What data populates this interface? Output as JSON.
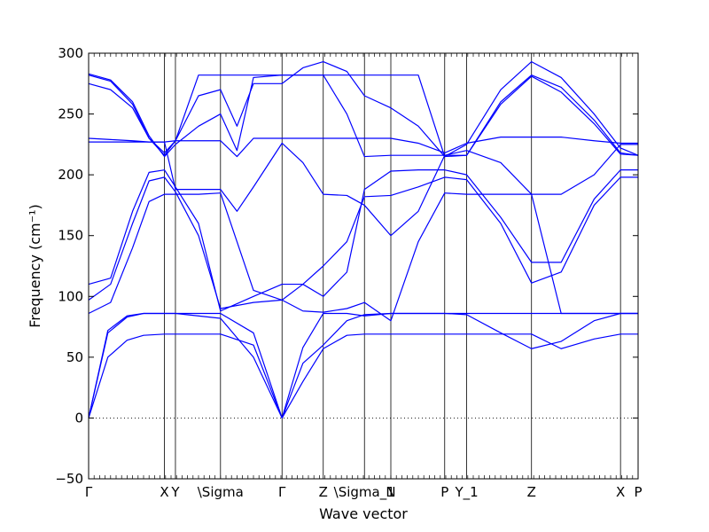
{
  "chart_data": {
    "type": "line",
    "xlabel": "Wave vector",
    "ylabel": "Frequency (cm⁻¹)",
    "ylim": [
      -50,
      300
    ],
    "y_ticks": [
      -50,
      0,
      50,
      100,
      150,
      200,
      250,
      300
    ],
    "x_ticks": [
      {
        "label": "Γ",
        "x": 0.0
      },
      {
        "label": "X",
        "x": 0.138
      },
      {
        "label": "Y",
        "x": 0.158
      },
      {
        "label": "\\Sigma",
        "x": 0.24
      },
      {
        "label": "Γ",
        "x": 0.352
      },
      {
        "label": "Z",
        "x": 0.427
      },
      {
        "label": "\\Sigma_1",
        "x": 0.502
      },
      {
        "label": "N",
        "x": 0.55
      },
      {
        "label": "P",
        "x": 0.648
      },
      {
        "label": "Y_1",
        "x": 0.688
      },
      {
        "label": "Z",
        "x": 0.806
      },
      {
        "label": "X",
        "x": 0.968
      },
      {
        "label": "P",
        "x": 1.0
      }
    ],
    "zero_line": true,
    "line_color": "#0000ff",
    "series": [
      {
        "x": [
          0,
          0.035,
          0.07,
          0.1,
          0.138,
          0.158,
          0.24,
          0.3,
          0.352,
          0.39,
          0.427,
          0.47,
          0.502,
          0.55,
          0.6,
          0.648,
          0.688,
          0.75,
          0.806,
          0.86,
          0.92,
          0.968,
          1.0
        ],
        "y": [
          0,
          50,
          64,
          68,
          69,
          69,
          69,
          60,
          0,
          30,
          57,
          68,
          69,
          69,
          69,
          69,
          69,
          69,
          69,
          57,
          65,
          69,
          69
        ]
      },
      {
        "x": [
          0,
          0.035,
          0.07,
          0.1,
          0.138,
          0.158,
          0.24,
          0.3,
          0.352,
          0.39,
          0.427,
          0.47,
          0.502,
          0.55,
          0.6,
          0.648,
          0.688,
          0.75,
          0.806,
          0.86,
          0.92,
          0.968,
          1.0
        ],
        "y": [
          0,
          70,
          83,
          86,
          86,
          86,
          82,
          50,
          0,
          45,
          60,
          80,
          85,
          86,
          86,
          86,
          86,
          86,
          86,
          86,
          86,
          86,
          86
        ]
      },
      {
        "x": [
          0,
          0.035,
          0.07,
          0.1,
          0.138,
          0.158,
          0.24,
          0.3,
          0.352,
          0.39,
          0.427,
          0.47,
          0.502,
          0.55,
          0.6,
          0.648,
          0.688,
          0.75,
          0.806,
          0.86,
          0.92,
          0.968,
          1.0
        ],
        "y": [
          0,
          72,
          84,
          86,
          86,
          86,
          86,
          70,
          0,
          58,
          86,
          86,
          84,
          86,
          86,
          86,
          85,
          70,
          57,
          63,
          80,
          86,
          86
        ]
      },
      {
        "x": [
          0,
          0.04,
          0.08,
          0.11,
          0.138,
          0.158,
          0.2,
          0.24,
          0.3,
          0.352,
          0.39,
          0.427,
          0.47,
          0.502,
          0.55,
          0.6,
          0.648,
          0.688,
          0.75,
          0.806,
          0.86,
          0.92,
          0.968,
          1.0
        ],
        "y": [
          86,
          95,
          140,
          178,
          184,
          184,
          184,
          185,
          105,
          97,
          88,
          87,
          90,
          95,
          80,
          145,
          185,
          184,
          184,
          184,
          86,
          86,
          86,
          86
        ]
      },
      {
        "x": [
          0,
          0.04,
          0.08,
          0.11,
          0.138,
          0.158,
          0.2,
          0.24,
          0.3,
          0.352,
          0.39,
          0.427,
          0.47,
          0.502,
          0.55,
          0.6,
          0.648,
          0.688,
          0.75,
          0.806,
          0.86,
          0.92,
          0.968,
          1.0
        ],
        "y": [
          97,
          110,
          160,
          195,
          198,
          186,
          150,
          90,
          95,
          97,
          110,
          125,
          145,
          182,
          183,
          190,
          198,
          196,
          160,
          111,
          120,
          175,
          198,
          198
        ]
      },
      {
        "x": [
          0,
          0.04,
          0.08,
          0.11,
          0.138,
          0.158,
          0.2,
          0.24,
          0.3,
          0.352,
          0.39,
          0.427,
          0.47,
          0.502,
          0.55,
          0.6,
          0.648,
          0.688,
          0.75,
          0.806,
          0.86,
          0.92,
          0.968,
          1.0
        ],
        "y": [
          110,
          115,
          170,
          202,
          204,
          190,
          160,
          88,
          100,
          110,
          110,
          100,
          120,
          188,
          203,
          204,
          204,
          200,
          165,
          128,
          128,
          180,
          204,
          204
        ]
      },
      {
        "x": [
          0,
          0.04,
          0.08,
          0.11,
          0.138,
          0.158,
          0.2,
          0.24,
          0.27,
          0.3,
          0.352,
          0.39,
          0.427,
          0.47,
          0.502,
          0.55,
          0.6,
          0.648,
          0.688,
          0.75,
          0.806,
          0.86,
          0.92,
          0.968,
          1.0
        ],
        "y": [
          227,
          227,
          227,
          227,
          227,
          188,
          188,
          188,
          170,
          190,
          226,
          210,
          184,
          183,
          175,
          150,
          170,
          216,
          220,
          210,
          184,
          184,
          200,
          225,
          225
        ]
      },
      {
        "x": [
          0,
          0.04,
          0.08,
          0.11,
          0.138,
          0.158,
          0.2,
          0.24,
          0.27,
          0.3,
          0.352,
          0.39,
          0.427,
          0.47,
          0.502,
          0.55,
          0.6,
          0.648,
          0.688,
          0.75,
          0.806,
          0.86,
          0.92,
          0.968,
          1.0
        ],
        "y": [
          230,
          229,
          228,
          227,
          227,
          228,
          228,
          228,
          215,
          230,
          230,
          230,
          230,
          230,
          230,
          230,
          226,
          218,
          226,
          231,
          231,
          231,
          228,
          226,
          226
        ]
      },
      {
        "x": [
          0,
          0.04,
          0.08,
          0.11,
          0.138,
          0.158,
          0.2,
          0.24,
          0.27,
          0.3,
          0.352,
          0.39,
          0.427,
          0.47,
          0.502,
          0.55,
          0.6,
          0.648,
          0.688,
          0.75,
          0.806,
          0.86,
          0.92,
          0.968,
          1.0
        ],
        "y": [
          275,
          270,
          255,
          230,
          218,
          228,
          265,
          270,
          240,
          275,
          275,
          288,
          293,
          285,
          265,
          255,
          240,
          215,
          225,
          270,
          293,
          280,
          250,
          222,
          216
        ]
      },
      {
        "x": [
          0,
          0.04,
          0.08,
          0.11,
          0.138,
          0.158,
          0.2,
          0.24,
          0.27,
          0.3,
          0.352,
          0.39,
          0.427,
          0.47,
          0.502,
          0.55,
          0.6,
          0.648,
          0.688,
          0.75,
          0.806,
          0.86,
          0.92,
          0.968,
          1.0
        ],
        "y": [
          283,
          278,
          260,
          232,
          215,
          225,
          240,
          250,
          220,
          280,
          282,
          282,
          282,
          282,
          282,
          282,
          282,
          215,
          216,
          260,
          282,
          272,
          245,
          218,
          216
        ]
      },
      {
        "x": [
          0,
          0.04,
          0.08,
          0.11,
          0.138,
          0.158,
          0.2,
          0.24,
          0.27,
          0.3,
          0.352,
          0.39,
          0.427,
          0.47,
          0.502,
          0.55,
          0.6,
          0.648,
          0.688,
          0.75,
          0.806,
          0.86,
          0.92,
          0.968,
          1.0
        ],
        "y": [
          282,
          277,
          258,
          230,
          216,
          228,
          282,
          282,
          282,
          282,
          282,
          282,
          282,
          250,
          215,
          216,
          216,
          216,
          216,
          258,
          281,
          268,
          242,
          217,
          216
        ]
      }
    ]
  }
}
